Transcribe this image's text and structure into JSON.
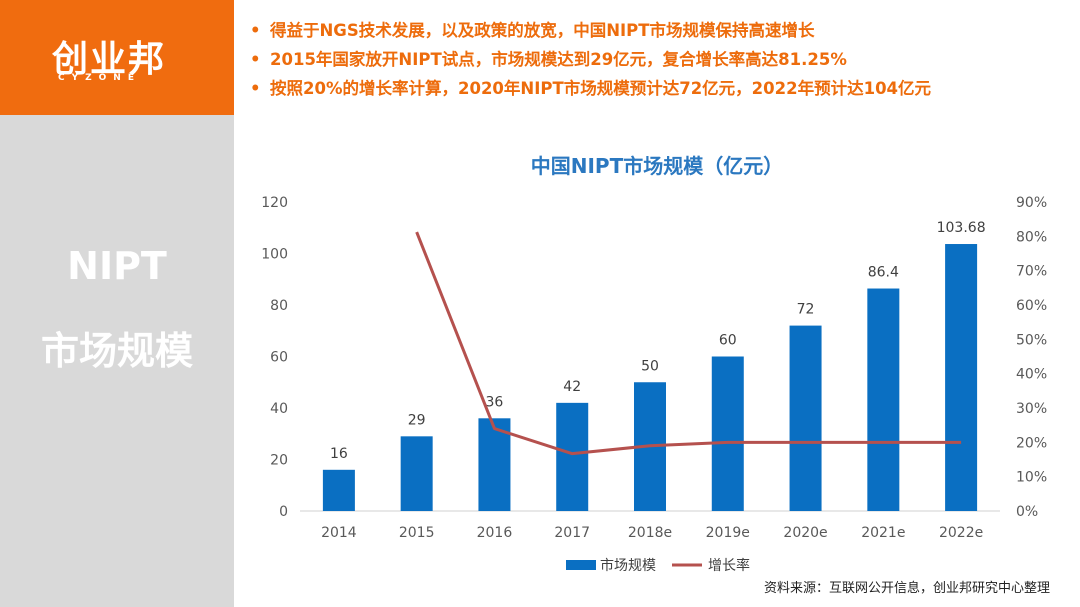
{
  "brand": {
    "name": "创业邦",
    "sub": "CYZONE"
  },
  "side_title": {
    "line1": "NIPT",
    "line2": "市场规模"
  },
  "bullets": [
    "得益于NGS技术发展，以及政策的放宽，中国NIPT市场规模保持高速增长",
    "2015年国家放开NIPT试点，市场规模达到29亿元，复合增长率高达81.25%",
    "按照20%的增长率计算，2020年NIPT市场规模预计达72亿元，2022年预计达104亿元"
  ],
  "bullet_symbol": "•",
  "source": "资料来源：互联网公开信息，创业邦研究中心整理",
  "colors": {
    "accent": "#f06c0f",
    "bar": "#0a6fc2",
    "line": "#b5514e",
    "title": "#2b78c0"
  },
  "chart_data": {
    "type": "bar",
    "title": "中国NIPT市场规模（亿元）",
    "categories": [
      "2014",
      "2015",
      "2016",
      "2017",
      "2018e",
      "2019e",
      "2020e",
      "2021e",
      "2022e"
    ],
    "series": [
      {
        "name": "市场规模",
        "type": "bar",
        "axis": "left",
        "values": [
          16,
          29,
          36,
          42,
          50,
          60,
          72,
          86.4,
          103.68
        ],
        "labels": [
          "16",
          "29",
          "36",
          "42",
          "50",
          "60",
          "72",
          "86.4",
          "103.68"
        ]
      },
      {
        "name": "增长率",
        "type": "line",
        "axis": "right",
        "values": [
          null,
          0.8125,
          0.24,
          0.167,
          0.19,
          0.2,
          0.2,
          0.2,
          0.2
        ]
      }
    ],
    "y_left": {
      "min": 0,
      "max": 120,
      "ticks": [
        "0",
        "20",
        "40",
        "60",
        "80",
        "100",
        "120"
      ]
    },
    "y_right": {
      "min": 0,
      "max": 0.9,
      "ticks": [
        "0%",
        "10%",
        "20%",
        "30%",
        "40%",
        "50%",
        "60%",
        "70%",
        "80%",
        "90%"
      ]
    },
    "legend_position": "bottom",
    "grid": false
  }
}
